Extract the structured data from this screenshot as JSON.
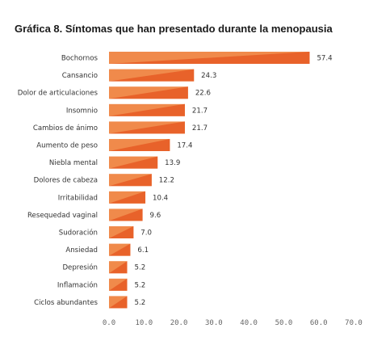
{
  "chart_data": {
    "type": "bar",
    "orientation": "horizontal",
    "title": "Gráfica 8. Síntomas que han presentado durante la menopausia",
    "xlabel": "",
    "ylabel": "",
    "xlim": [
      0,
      70
    ],
    "x_ticks": [
      "0.0",
      "10.0",
      "20.0",
      "30.0",
      "40.0",
      "50.0",
      "60.0",
      "70.0"
    ],
    "grid": false,
    "legend": "none",
    "bar_color": "#f08a4b",
    "bar_color_dark": "#e8622a",
    "categories": [
      "Bochornos",
      "Cansancio",
      "Dolor de articulaciones",
      "Insomnio",
      "Cambios de ánimo",
      "Aumento de peso",
      "Niebla mental",
      "Dolores de cabeza",
      "Irritabilidad",
      "Resequedad vaginal",
      "Sudoración",
      "Ansiedad",
      "Depresión",
      "Inflamación",
      "Ciclos abundantes"
    ],
    "values": [
      57.4,
      24.3,
      22.6,
      21.7,
      21.7,
      17.4,
      13.9,
      12.2,
      10.4,
      9.6,
      7.0,
      6.1,
      5.2,
      5.2,
      5.2
    ],
    "value_labels": [
      "57.4",
      "24.3",
      "22.6",
      "21.7",
      "21.7",
      "17.4",
      "13.9",
      "12.2",
      "10.4",
      "9.6",
      "7.0",
      "6.1",
      "5.2",
      "5.2",
      "5.2"
    ]
  }
}
